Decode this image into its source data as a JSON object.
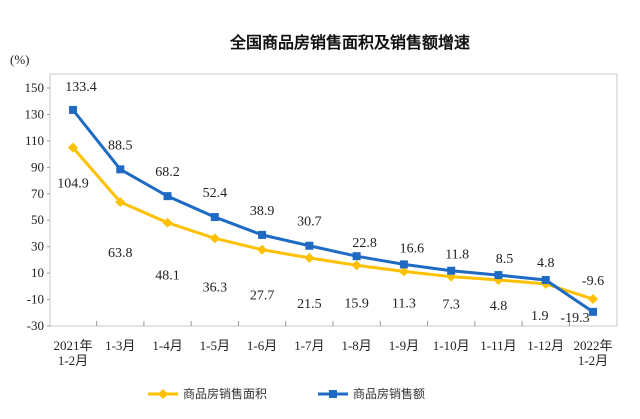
{
  "chart_data": {
    "type": "line",
    "title": "全国商品房销售面积及销售额增速",
    "ylabel": "(%)",
    "xlabel": "",
    "ylim": [
      -30,
      150
    ],
    "yticks": [
      150,
      130,
      110,
      90,
      70,
      50,
      30,
      10,
      -10,
      -30
    ],
    "categories": [
      [
        "2021年",
        "1-2月"
      ],
      [
        "1-3月"
      ],
      [
        "1-4月"
      ],
      [
        "1-5月"
      ],
      [
        "1-6月"
      ],
      [
        "1-7月"
      ],
      [
        "1-8月"
      ],
      [
        "1-9月"
      ],
      [
        "1-10月"
      ],
      [
        "1-11月"
      ],
      [
        "1-12月"
      ],
      [
        "2022年",
        "1-2月"
      ]
    ],
    "series": [
      {
        "name": "商品房销售面积",
        "color": "#FFC000",
        "marker": "diamond",
        "values": [
          104.9,
          63.8,
          48.1,
          36.3,
          27.7,
          21.5,
          15.9,
          11.3,
          7.3,
          4.8,
          1.9,
          -9.6
        ]
      },
      {
        "name": "商品房销售额",
        "color": "#1F6BC4",
        "marker": "square",
        "values": [
          133.4,
          88.5,
          68.2,
          52.4,
          38.9,
          30.7,
          22.8,
          16.6,
          11.8,
          8.5,
          4.8,
          -19.3
        ]
      }
    ],
    "legend": "bottom",
    "grid": false
  }
}
